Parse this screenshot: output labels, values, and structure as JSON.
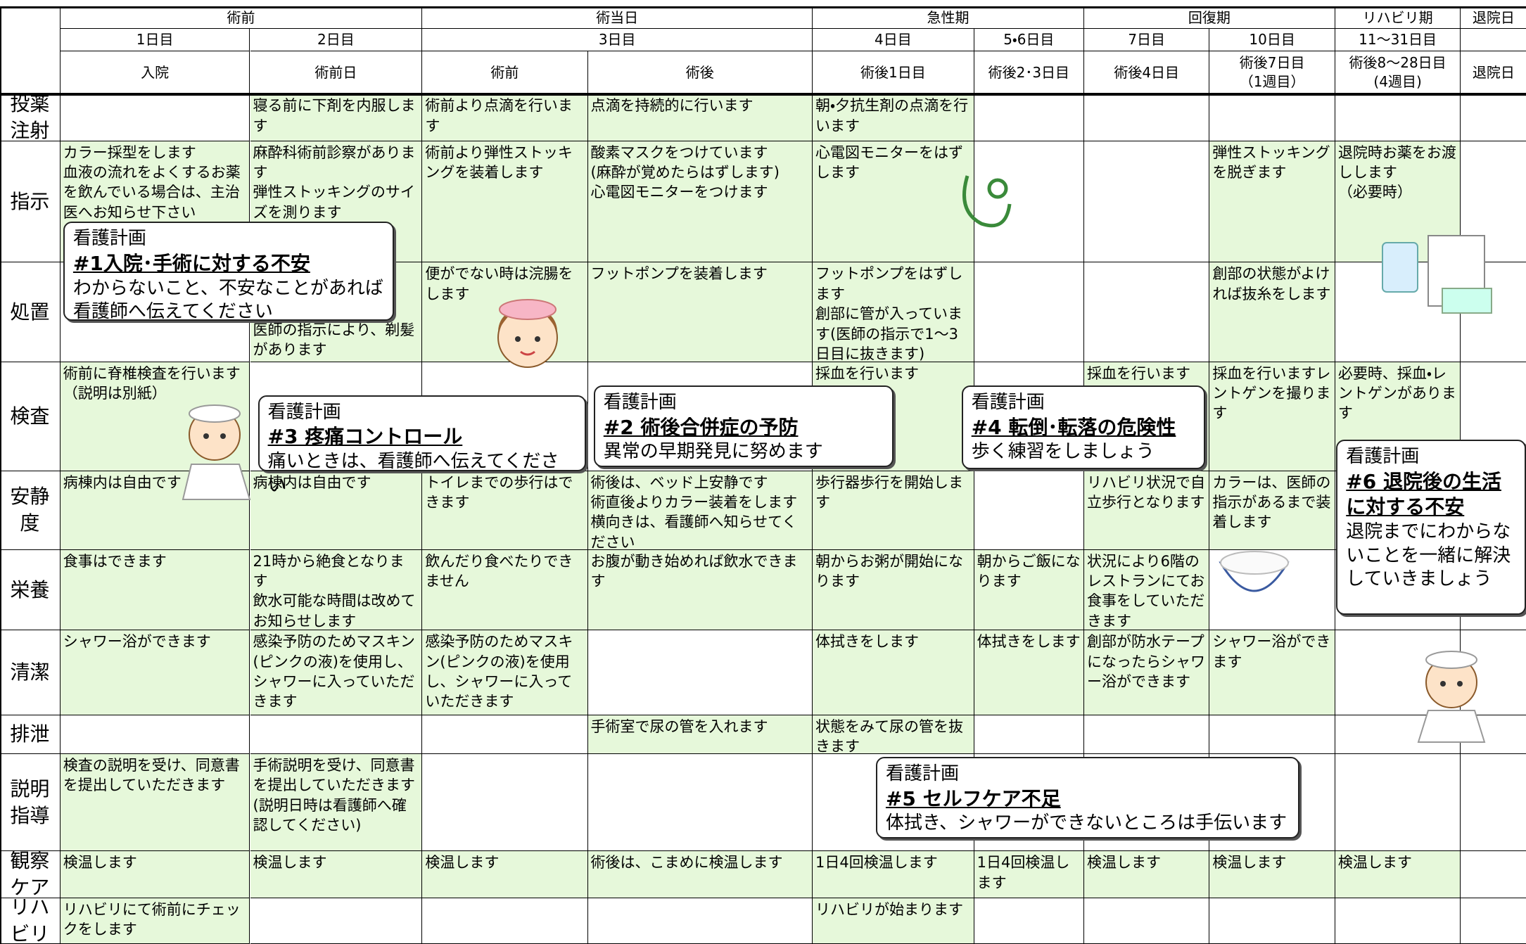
{
  "header": {
    "phases": [
      "術前",
      "術当日",
      "急性期",
      "回復期",
      "リハビリ期",
      "退院日"
    ],
    "days": [
      "1日目",
      "2日目",
      "3日目",
      "4日目",
      "5・6日目",
      "7日目",
      "10日目",
      "11〜31日目"
    ],
    "stages": [
      "入院",
      "術前日",
      "術前",
      "術後",
      "術後1日目",
      "術後2･3日目",
      "術後4日目",
      "術後7日目\n（1週目）",
      "術後8〜28日目\n(4週目)",
      "退院日"
    ]
  },
  "rows": [
    {
      "label": "投薬注射",
      "cells": [
        null,
        "寝る前に下剤を内服します",
        "術前より点滴を行います",
        "点滴を持続的に行います",
        "朝・夕抗生剤の点滴を行います",
        null,
        null,
        null,
        null,
        null
      ]
    },
    {
      "label": "指示",
      "cells": [
        "カラー採型をします\n血液の流れをよくするお薬を飲んでいる場合は、主治医へお知らせ下さい",
        "麻酔科術前診察があります\n弾性ストッキングのサイズを測ります",
        "術前より弾性ストッキングを装着します",
        "酸素マスクをつけています\n(麻酔が覚めたらはずします)\n心電図モニターをつけます",
        "心電図モニターをはずします",
        null,
        null,
        "弾性ストッキングを脱ぎます",
        "退院時お薬をお渡しします\n（必要時）",
        null
      ]
    },
    {
      "label": "処置",
      "cells": [
        null,
        "医師の指示により、剃髪があります",
        "便がでない時は浣腸をします",
        "フットポンプを装着します",
        "フットポンプをはずします\n創部に管が入っています(医師の指示で1～3日目に抜きます)",
        null,
        null,
        "創部の状態がよければ抜糸をします",
        null,
        null
      ]
    },
    {
      "label": "検査",
      "cells": [
        "術前に脊椎検査を行います（説明は別紙）",
        null,
        null,
        null,
        "採血を行います",
        null,
        "採血を行います",
        "採血を行いますレントゲンを撮ります",
        "必要時、採血・レントゲンがあります",
        null
      ]
    },
    {
      "label": "安静度",
      "cells": [
        "病棟内は自由です",
        "病棟内は自由です",
        "トイレまでの歩行はできます",
        "術後は、ベッド上安静です\n術直後よりカラー装着をします\n横向きは、看護師へ知らせてください",
        "歩行器歩行を開始します",
        null,
        "リハビリ状況で自立歩行となります",
        "カラーは、医師の指示があるまで装着します",
        null,
        null
      ]
    },
    {
      "label": "栄養",
      "cells": [
        "食事はできます",
        "21時から絶食となります\n飲水可能な時間は改めてお知らせします",
        "飲んだり食べたりできません",
        "お腹が動き始めれば飲水できます",
        "朝からお粥が開始になります",
        "朝からご飯になります",
        "状況により6階のレストランにてお食事をしていただきます",
        null,
        null,
        null
      ]
    },
    {
      "label": "清潔",
      "cells": [
        "シャワー浴ができます",
        "感染予防のためマスキン(ピンクの液)を使用し、シャワーに入っていただきます",
        "感染予防のためマスキン(ピンクの液)を使用し、シャワーに入っていただきます",
        null,
        "体拭きをします",
        "体拭きをします",
        "創部が防水テープになったらシャワー浴ができます",
        "シャワー浴ができます",
        null,
        null
      ]
    },
    {
      "label": "排泄",
      "cells": [
        null,
        null,
        null,
        "手術室で尿の管を入れます",
        "状態をみて尿の管を抜きます",
        null,
        null,
        null,
        null,
        null
      ]
    },
    {
      "label": "説明指導",
      "cells": [
        "検査の説明を受け、同意書を提出していただきます",
        "手術説明を受け、同意書を提出していただきます(説明日時は看護師へ確認してください)",
        null,
        null,
        null,
        null,
        null,
        null,
        null,
        null
      ]
    },
    {
      "label": "観察ケア",
      "cells": [
        "検温します",
        "検温します",
        "検温します",
        "術後は、こまめに検温します",
        "1日4回検温します",
        "1日4回検温します",
        "検温します",
        "検温します",
        "検温します",
        null
      ]
    },
    {
      "label": "リハビリ",
      "cells": [
        "リハビリにて術前にチェックをします",
        null,
        null,
        null,
        "リハビリが始まります",
        null,
        null,
        null,
        null,
        null
      ]
    }
  ],
  "plans": [
    {
      "title": "看護計画",
      "heading": "#1入院･手術に対する不安",
      "body": "わからないこと、不安なことがあれば看護師へ伝えてください"
    },
    {
      "title": "看護計画",
      "heading": "#3 疼痛コントロール",
      "body": "痛いときは、看護師へ伝えてください"
    },
    {
      "title": "看護計画",
      "heading": "#2 術後合併症の予防",
      "body": "異常の早期発見に努めます"
    },
    {
      "title": "看護計画",
      "heading": "#4 転倒･転落の危険性",
      "body": "歩く練習をしましょう"
    },
    {
      "title": "看護計画",
      "heading": "#6 退院後の生活に対する不安",
      "body": "退院までにわからないことを一緒に解決していきましょう"
    },
    {
      "title": "看護計画",
      "heading": "#5 セルフケア不足",
      "body": "体拭き、シャワーができないところは手伝います"
    }
  ]
}
